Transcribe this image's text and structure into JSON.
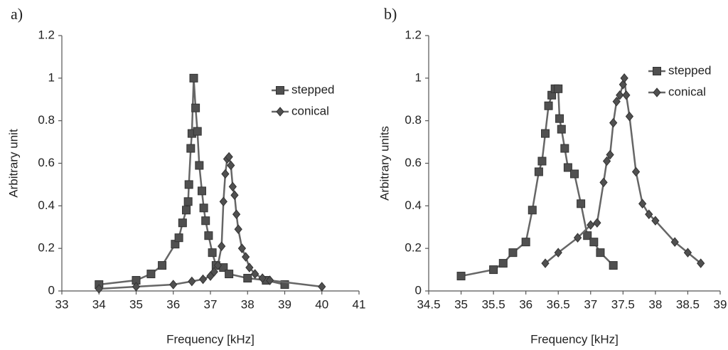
{
  "chart_data": [
    {
      "type": "line",
      "panel_label": "a)",
      "xlabel": "Frequency [kHz]",
      "ylabel": "Arbitrary unit",
      "xlim": [
        33,
        41
      ],
      "xticks": [
        33,
        34,
        35,
        36,
        37,
        38,
        39,
        40,
        41
      ],
      "ylim": [
        0,
        1.2
      ],
      "yticks": [
        0,
        0.2,
        0.4,
        0.6,
        0.8,
        1,
        1.2
      ],
      "grid": false,
      "legend": "upper-right",
      "series": [
        {
          "name": "stepped",
          "color": "#505050",
          "marker": "square",
          "x": [
            34,
            35,
            35.4,
            35.7,
            36.05,
            36.15,
            36.25,
            36.35,
            36.4,
            36.42,
            36.47,
            36.5,
            36.55,
            36.6,
            36.65,
            36.7,
            36.77,
            36.82,
            36.87,
            36.95,
            37.05,
            37.15,
            37.35,
            37.5,
            38,
            38.5,
            39
          ],
          "values": [
            0.03,
            0.05,
            0.08,
            0.12,
            0.22,
            0.25,
            0.32,
            0.38,
            0.42,
            0.5,
            0.67,
            0.74,
            1.0,
            0.86,
            0.75,
            0.59,
            0.47,
            0.39,
            0.33,
            0.26,
            0.18,
            0.12,
            0.11,
            0.08,
            0.06,
            0.05,
            0.03
          ]
        },
        {
          "name": "conical",
          "color": "#505050",
          "marker": "diamond",
          "x": [
            34,
            35,
            36,
            36.5,
            36.8,
            37,
            37.1,
            37.2,
            37.3,
            37.35,
            37.4,
            37.45,
            37.5,
            37.55,
            37.6,
            37.65,
            37.7,
            37.75,
            37.85,
            37.95,
            38.05,
            38.2,
            38.4,
            38.6,
            40
          ],
          "values": [
            0.01,
            0.02,
            0.03,
            0.045,
            0.055,
            0.07,
            0.09,
            0.12,
            0.21,
            0.42,
            0.55,
            0.62,
            0.63,
            0.59,
            0.49,
            0.45,
            0.36,
            0.29,
            0.2,
            0.16,
            0.11,
            0.08,
            0.06,
            0.05,
            0.02
          ]
        }
      ]
    },
    {
      "type": "line",
      "panel_label": "b)",
      "xlabel": "Frequency [kHz]",
      "ylabel": "Arbitrary units",
      "xlim": [
        34.5,
        39
      ],
      "xticks": [
        34.5,
        35,
        35.5,
        36,
        36.5,
        37,
        37.5,
        38,
        38.5,
        39
      ],
      "ylim": [
        0,
        1.2
      ],
      "yticks": [
        0,
        0.2,
        0.4,
        0.6,
        0.8,
        1,
        1.2
      ],
      "grid": false,
      "legend": "upper-right",
      "series": [
        {
          "name": "stepped",
          "color": "#505050",
          "marker": "square",
          "x": [
            35,
            35.5,
            35.65,
            35.8,
            36,
            36.1,
            36.2,
            36.25,
            36.3,
            36.35,
            36.4,
            36.45,
            36.5,
            36.52,
            36.55,
            36.6,
            36.65,
            36.75,
            36.85,
            36.95,
            37.05,
            37.15,
            37.35
          ],
          "values": [
            0.07,
            0.1,
            0.13,
            0.18,
            0.23,
            0.38,
            0.56,
            0.61,
            0.74,
            0.87,
            0.92,
            0.95,
            0.95,
            0.81,
            0.76,
            0.67,
            0.58,
            0.55,
            0.41,
            0.26,
            0.23,
            0.18,
            0.12
          ]
        },
        {
          "name": "conical",
          "color": "#505050",
          "marker": "diamond",
          "x": [
            36.3,
            36.5,
            36.8,
            37,
            37.1,
            37.2,
            37.25,
            37.3,
            37.35,
            37.4,
            37.45,
            37.5,
            37.52,
            37.55,
            37.6,
            37.7,
            37.8,
            37.9,
            38,
            38.3,
            38.5,
            38.7
          ],
          "values": [
            0.13,
            0.18,
            0.25,
            0.31,
            0.32,
            0.51,
            0.61,
            0.64,
            0.79,
            0.89,
            0.92,
            0.97,
            1.0,
            0.92,
            0.82,
            0.56,
            0.41,
            0.36,
            0.33,
            0.23,
            0.18,
            0.13
          ]
        }
      ]
    }
  ]
}
